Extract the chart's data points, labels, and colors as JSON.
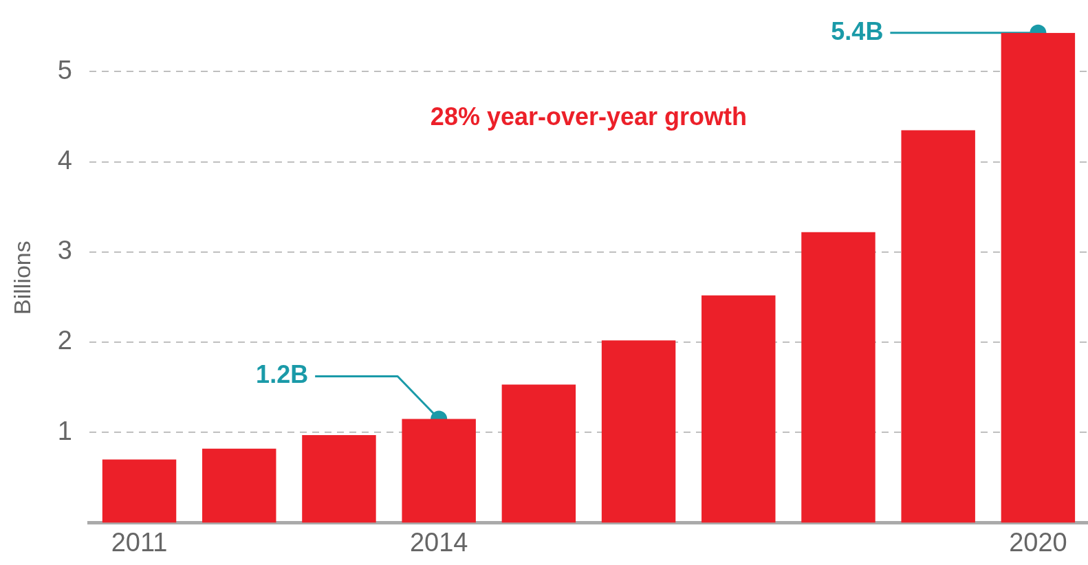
{
  "chart_data": {
    "type": "bar",
    "ylabel": "Billions",
    "categories": [
      "2011",
      null,
      null,
      "2014",
      null,
      null,
      null,
      null,
      null,
      "2020"
    ],
    "values": [
      0.7,
      0.82,
      0.97,
      1.15,
      1.53,
      2.02,
      2.52,
      3.22,
      4.35,
      5.43
    ],
    "color": "#ec2029",
    "ylim": [
      0,
      5.43
    ],
    "yticks": [
      1,
      2,
      3,
      4,
      5
    ],
    "grid": "y",
    "legend": false,
    "annotations": [
      {
        "text": "1.2B",
        "x": "2014",
        "y": 1.15
      },
      {
        "text": "5.4B",
        "x": "2020",
        "y": 5.43
      },
      "28% year-over-year growth"
    ]
  }
}
